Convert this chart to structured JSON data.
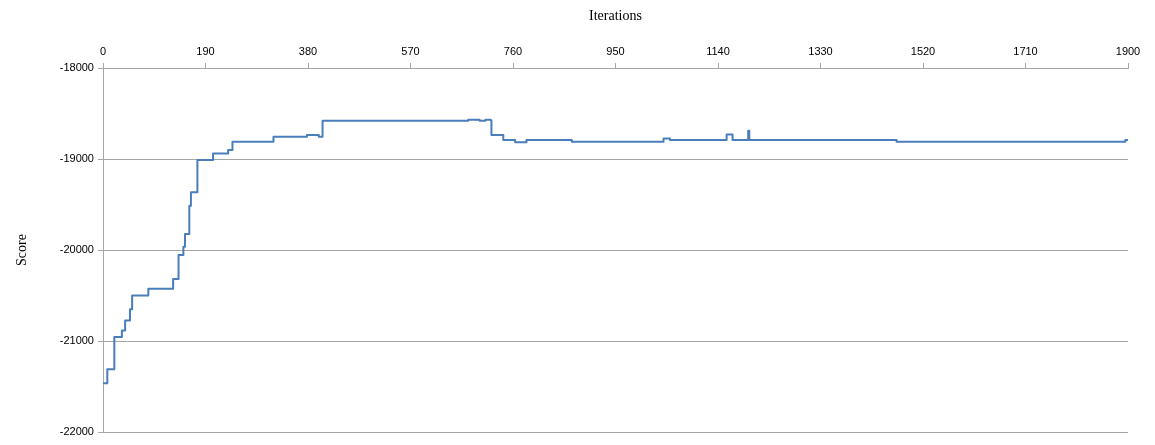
{
  "chart_data": {
    "type": "step",
    "xlabel": "Iterations",
    "ylabel": "Score",
    "xlim": [
      0,
      1900
    ],
    "xticks": [
      0,
      190,
      380,
      570,
      760,
      950,
      1140,
      1330,
      1520,
      1710,
      1900
    ],
    "ylim": [
      -22000,
      -18000
    ],
    "yticks": [
      -22000,
      -21000,
      -20000,
      -19000,
      -18000
    ],
    "grid": "y",
    "legend": false,
    "marker": "none",
    "line_style": "solid",
    "series": [
      {
        "color": "#4a7ebb",
        "x": [
          0,
          8,
          21,
          35,
          41,
          50,
          54,
          84,
          130,
          140,
          149,
          152,
          160,
          163,
          175,
          204,
          232,
          240,
          316,
          378,
          400,
          407,
          677,
          698,
          709,
          719,
          720,
          742,
          764,
          785,
          869,
          1039,
          1051,
          1058,
          1156,
          1167,
          1196,
          1198,
          1471,
          1895,
          1900
        ],
        "values": [
          -21465,
          -21310,
          -20955,
          -20885,
          -20775,
          -20650,
          -20500,
          -20425,
          -20320,
          -20055,
          -19965,
          -19825,
          -19515,
          -19365,
          -19010,
          -18940,
          -18900,
          -18810,
          -18755,
          -18735,
          -18755,
          -18580,
          -18570,
          -18580,
          -18570,
          -18580,
          -18735,
          -18790,
          -18815,
          -18790,
          -18810,
          -18775,
          -18790,
          -18790,
          -18730,
          -18790,
          -18690,
          -18790,
          -18810,
          -18790,
          -18790
        ]
      }
    ]
  }
}
